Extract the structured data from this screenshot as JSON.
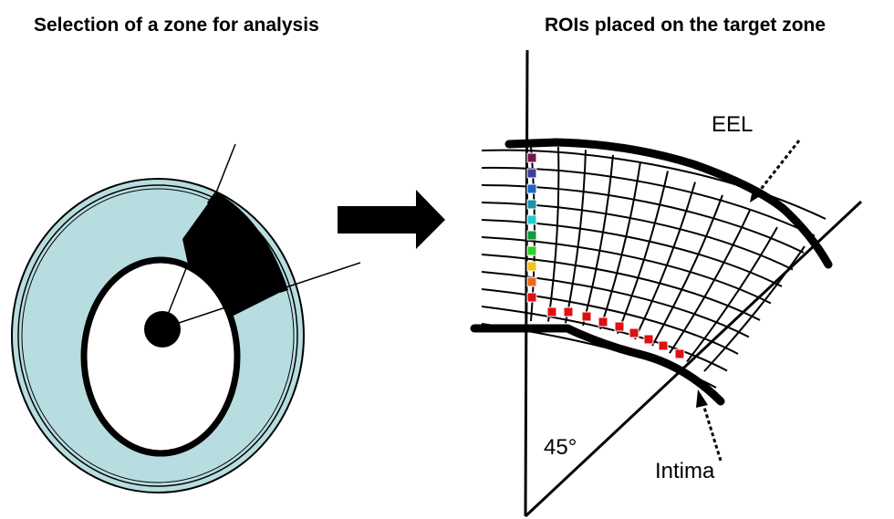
{
  "left_panel": {
    "title": "Selection of a zone for analysis"
  },
  "right_panel": {
    "title": "ROIs placed on the target zone",
    "labels": {
      "eel": "EEL",
      "intima": "Intima",
      "angle": "45°"
    }
  },
  "colors": {
    "vessel_wall": "#b7dde0",
    "target_zone": "#000000",
    "arrow": "#000000",
    "roi_column": [
      "#7a1448",
      "#3b3f9e",
      "#1f62c8",
      "#1e93a3",
      "#26c9d2",
      "#139a3a",
      "#2fd02a",
      "#f0c41a",
      "#e96a1c",
      "#e01010"
    ],
    "roi_row": "#e01010"
  }
}
